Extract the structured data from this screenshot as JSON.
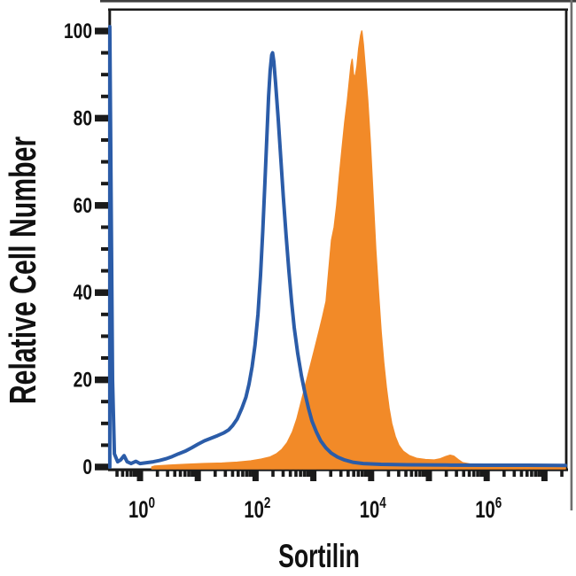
{
  "figure": {
    "background": "#FFFFFF"
  },
  "frame_artifact": {
    "description": "faint gray image-border lines along top and right edges",
    "top_color": "#3F3F3F",
    "right_color": "#6F6F6F"
  },
  "chart_data": {
    "type": "area",
    "variant": "flow-cytometry-histogram-overlay",
    "title": "",
    "xlabel": "Sortilin",
    "ylabel": "Relative Cell Number",
    "x_scale": "log10",
    "x_label_format": "10^n",
    "x_decade_exponents": [
      0,
      1,
      2,
      3,
      4,
      5,
      6,
      7
    ],
    "x_tick_exponents_labeled": [
      0,
      2,
      4,
      6
    ],
    "x_range_exponents": [
      -0.52,
      7.4
    ],
    "y_ticks_labeled": [
      0,
      20,
      40,
      60,
      80,
      100
    ],
    "y_minor_tick_step": 5,
    "ylim": [
      0,
      105
    ],
    "grid": false,
    "legend": "none",
    "axis_color": "#1A1A1A",
    "series": [
      {
        "name": "orange-filled-histogram",
        "style": "filled-area",
        "fill": "#F28A28",
        "peak": {
          "x": 6900,
          "y": 100
        },
        "points": [
          [
            1.6,
            0
          ],
          [
            1.8,
            0.2
          ],
          [
            3.1,
            0.4
          ],
          [
            6.3,
            0.6
          ],
          [
            13,
            0.8
          ],
          [
            26,
            0.9
          ],
          [
            48,
            1.1
          ],
          [
            83,
            1.4
          ],
          [
            126,
            1.8
          ],
          [
            180,
            2.3
          ],
          [
            230,
            3
          ],
          [
            284,
            4
          ],
          [
            350,
            5.5
          ],
          [
            434,
            8
          ],
          [
            519,
            11
          ],
          [
            618,
            15
          ],
          [
            738,
            19
          ],
          [
            880,
            23
          ],
          [
            1050,
            27
          ],
          [
            1250,
            31
          ],
          [
            1450,
            34.5
          ],
          [
            1660,
            38
          ],
          [
            1850,
            45
          ],
          [
            2060,
            52
          ],
          [
            2290,
            55
          ],
          [
            2540,
            60
          ],
          [
            2830,
            67
          ],
          [
            3140,
            73
          ],
          [
            3490,
            79
          ],
          [
            3880,
            84
          ],
          [
            4170,
            88
          ],
          [
            4470,
            92
          ],
          [
            4700,
            93.5
          ],
          [
            4950,
            90
          ],
          [
            5300,
            89.5
          ],
          [
            5700,
            92
          ],
          [
            6100,
            96
          ],
          [
            6600,
            99
          ],
          [
            6900,
            100
          ],
          [
            7330,
            97
          ],
          [
            7870,
            92
          ],
          [
            8750,
            84
          ],
          [
            9720,
            74
          ],
          [
            10800,
            62
          ],
          [
            12000,
            50
          ],
          [
            13400,
            40
          ],
          [
            14900,
            31
          ],
          [
            16500,
            24
          ],
          [
            18400,
            18
          ],
          [
            20400,
            13.5
          ],
          [
            22700,
            10
          ],
          [
            26100,
            7
          ],
          [
            30100,
            5
          ],
          [
            35900,
            3.6
          ],
          [
            46000,
            2.6
          ],
          [
            61000,
            2
          ],
          [
            87000,
            1.7
          ],
          [
            124000,
            1.6
          ],
          [
            158000,
            1.9
          ],
          [
            196000,
            2.4
          ],
          [
            233000,
            2.7
          ],
          [
            269000,
            2.5
          ],
          [
            320000,
            1.7
          ],
          [
            383000,
            1
          ],
          [
            508000,
            0.7
          ],
          [
            863000,
            0.5
          ],
          [
            2100000,
            0.4
          ],
          [
            6000000,
            0.35
          ],
          [
            23000000,
            0.3
          ]
        ]
      },
      {
        "name": "blue-open-histogram",
        "style": "open-line",
        "stroke": "#2B5CA8",
        "stroke_width": 4,
        "peak": {
          "x": 195,
          "y": 95
        },
        "axis_pileup_spike": {
          "x": 0.3,
          "y": 101
        },
        "points": [
          [
            0.3,
            0
          ],
          [
            0.3,
            101
          ],
          [
            0.335,
            20
          ],
          [
            0.36,
            3
          ],
          [
            0.41,
            1.2
          ],
          [
            0.46,
            1.6
          ],
          [
            0.53,
            2.6
          ],
          [
            0.6,
            1.2
          ],
          [
            0.7,
            0.8
          ],
          [
            0.85,
            1.3
          ],
          [
            1,
            0.8
          ],
          [
            1.3,
            1
          ],
          [
            1.7,
            1.2
          ],
          [
            2.2,
            1.5
          ],
          [
            2.8,
            1.9
          ],
          [
            3.6,
            2.4
          ],
          [
            4.6,
            3
          ],
          [
            6,
            3.6
          ],
          [
            7.8,
            4.4
          ],
          [
            10,
            5.2
          ],
          [
            13,
            6
          ],
          [
            17,
            6.6
          ],
          [
            22,
            7.2
          ],
          [
            28,
            7.8
          ],
          [
            34,
            8.5
          ],
          [
            40,
            9.5
          ],
          [
            48,
            11
          ],
          [
            58,
            13.5
          ],
          [
            68,
            16
          ],
          [
            77,
            19
          ],
          [
            87,
            23
          ],
          [
            98,
            28
          ],
          [
            110,
            35
          ],
          [
            122,
            44
          ],
          [
            133,
            54
          ],
          [
            145,
            65
          ],
          [
            157,
            76
          ],
          [
            168,
            85
          ],
          [
            179,
            91
          ],
          [
            190,
            94.5
          ],
          [
            197,
            95
          ],
          [
            207,
            93
          ],
          [
            222,
            88
          ],
          [
            246,
            80
          ],
          [
            273,
            71
          ],
          [
            302,
            62
          ],
          [
            338,
            53
          ],
          [
            377,
            45
          ],
          [
            420,
            38
          ],
          [
            466,
            32
          ],
          [
            537,
            26
          ],
          [
            620,
            21
          ],
          [
            715,
            17
          ],
          [
            824,
            13.5
          ],
          [
            950,
            10.5
          ],
          [
            1130,
            8
          ],
          [
            1340,
            6
          ],
          [
            1650,
            4.4
          ],
          [
            2040,
            3.2
          ],
          [
            2610,
            2.3
          ],
          [
            3480,
            1.6
          ],
          [
            4800,
            1.1
          ],
          [
            7300,
            0.8
          ],
          [
            14800,
            0.6
          ],
          [
            42700,
            0.5
          ],
          [
            200000,
            0.45
          ],
          [
            1000000,
            0.4
          ],
          [
            5000000,
            0.4
          ],
          [
            23000000,
            0.35
          ]
        ]
      }
    ]
  }
}
